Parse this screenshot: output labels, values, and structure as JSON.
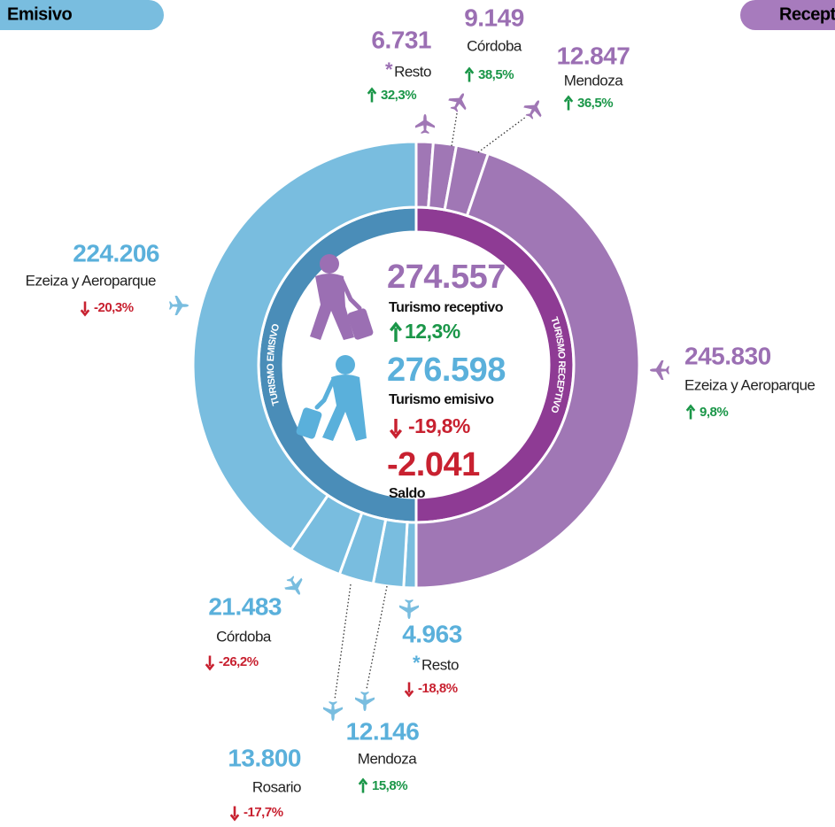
{
  "header": {
    "left_tab": "Emisivo",
    "right_tab": "Receptivo",
    "left_color": "#79bddf",
    "right_color": "#a77bbd"
  },
  "chart_data": {
    "type": "donut",
    "series": [
      {
        "name": "Turismo receptivo",
        "ring_label": "TURISMO RECEPTIVO",
        "total": 274557,
        "total_label": "274.557",
        "change": 12.3,
        "change_label": "12,3%",
        "color": "#a077b5",
        "inner_color": "#8e3b94",
        "text_color": "#9b6fb3",
        "categories": [
          "Resto",
          "Córdoba",
          "Mendoza",
          "Ezeiza y Aeroparque"
        ],
        "values": [
          6731,
          9149,
          12847,
          245830
        ],
        "value_labels": [
          "6.731",
          "9.149",
          "12.847",
          "245.830"
        ],
        "changes": [
          32.3,
          38.5,
          36.5,
          9.8
        ],
        "change_labels": [
          "32,3%",
          "38,5%",
          "36,5%",
          "9,8%"
        ],
        "markers": [
          "*",
          null,
          null,
          null
        ]
      },
      {
        "name": "Turismo emisivo",
        "ring_label": "TURISMO EMISIVO",
        "total": 276598,
        "total_label": "276.598",
        "change": -19.8,
        "change_label": "-19,8%",
        "color": "#79bddf",
        "inner_color": "#4a8db8",
        "text_color": "#5ab0db",
        "categories": [
          "Resto",
          "Mendoza",
          "Rosario",
          "Córdoba",
          "Ezeiza y Aeroparque"
        ],
        "values": [
          4963,
          12146,
          13800,
          21483,
          224206
        ],
        "value_labels": [
          "4.963",
          "12.146",
          "13.800",
          "21.483",
          "224.206"
        ],
        "changes": [
          -18.8,
          15.8,
          -17.7,
          -26.2,
          -20.3
        ],
        "change_labels": [
          "-18,8%",
          "15,8%",
          "-17,7%",
          "-26,2%",
          "-20,3%"
        ],
        "markers": [
          "*",
          null,
          null,
          null,
          null
        ]
      }
    ],
    "balance": {
      "value": -2041,
      "label": "-2.041",
      "name": "Saldo"
    },
    "colors": {
      "up": "#1a9648",
      "down": "#c82130"
    }
  }
}
